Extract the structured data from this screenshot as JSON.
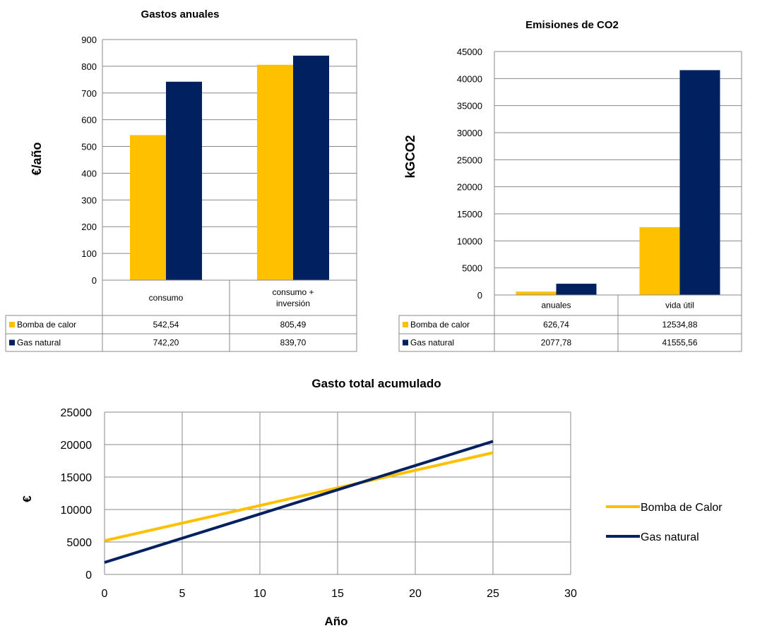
{
  "chart_data": [
    {
      "type": "bar",
      "title": "Gastos anuales",
      "ylabel": "€/año",
      "xlabel": "",
      "categories": [
        "consumo",
        "consumo +\ninversión"
      ],
      "category_lines": [
        [
          "consumo"
        ],
        [
          "consumo +",
          "inversión"
        ]
      ],
      "ylim": [
        0,
        900
      ],
      "yticks": [
        "0",
        "100",
        "200",
        "300",
        "400",
        "500",
        "600",
        "700",
        "800",
        "900"
      ],
      "grid": true,
      "series": [
        {
          "name": "Bomba de calor",
          "color": "#FFC000",
          "values": [
            542.54,
            805.49
          ],
          "labels": [
            "542,54",
            "805,49"
          ]
        },
        {
          "name": "Gas natural",
          "color": "#002060",
          "values": [
            742.2,
            839.7
          ],
          "labels": [
            "742,20",
            "839,70"
          ]
        }
      ],
      "legend": "data-table"
    },
    {
      "type": "bar",
      "title": "Emisiones de CO2",
      "ylabel": "kGCO2",
      "xlabel": "",
      "categories": [
        "anuales",
        "vida útil"
      ],
      "category_lines": [
        [
          "anuales"
        ],
        [
          "vida útil"
        ]
      ],
      "ylim": [
        0,
        45000
      ],
      "yticks": [
        "0",
        "5000",
        "10000",
        "15000",
        "20000",
        "25000",
        "30000",
        "35000",
        "40000",
        "45000"
      ],
      "grid": true,
      "series": [
        {
          "name": "Bomba de calor",
          "color": "#FFC000",
          "values": [
            626.74,
            12534.88
          ],
          "labels": [
            "626,74",
            "12534,88"
          ]
        },
        {
          "name": "Gas natural",
          "color": "#002060",
          "values": [
            2077.78,
            41555.56
          ],
          "labels": [
            "2077,78",
            "41555,56"
          ]
        }
      ],
      "legend": "data-table"
    },
    {
      "type": "line",
      "title": "Gasto total acumulado",
      "xlabel": "Año",
      "ylabel": "€",
      "xlim": [
        0,
        30
      ],
      "ylim": [
        0,
        25000
      ],
      "xticks": [
        "0",
        "5",
        "10",
        "15",
        "20",
        "25",
        "30"
      ],
      "yticks": [
        "0",
        "5000",
        "10000",
        "15000",
        "20000",
        "25000"
      ],
      "grid": true,
      "legend_position": "right",
      "series": [
        {
          "name": "Bomba de Calor",
          "color": "#FFC000",
          "x": [
            0,
            25
          ],
          "y": [
            5200,
            18750
          ]
        },
        {
          "name": "Gas natural",
          "color": "#002060",
          "x": [
            0,
            25
          ],
          "y": [
            1850,
            20500
          ]
        }
      ]
    }
  ]
}
